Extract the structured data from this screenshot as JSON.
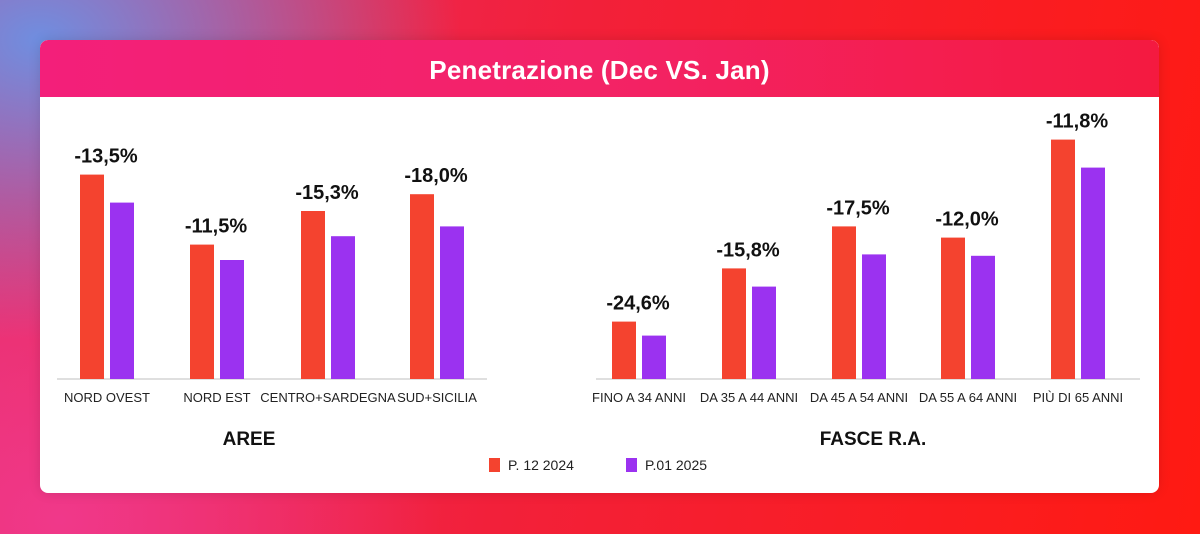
{
  "header": {
    "title": "Penetrazione (Dec VS. Jan)"
  },
  "legend": [
    {
      "name": "P. 12 2024",
      "color": "#f4432f"
    },
    {
      "name": "P.01 2025",
      "color": "#9b32f0"
    }
  ],
  "chart_data": [
    {
      "type": "bar",
      "title": "AREE",
      "categories": [
        "NORD OVEST",
        "NORD EST",
        "CENTRO+SARDEGNA",
        "SUD+SICILIA"
      ],
      "series": [
        {
          "name": "P. 12 2024",
          "values": [
            73,
            48,
            60,
            66
          ]
        },
        {
          "name": "P.01 2025",
          "values": [
            63,
            42.5,
            51,
            54.5
          ]
        }
      ],
      "data_labels": [
        "-13,5%",
        "-11,5%",
        "-15,3%",
        "-18,0%"
      ],
      "ylim": [
        0,
        100
      ]
    },
    {
      "type": "bar",
      "title": "FASCE R.A.",
      "categories": [
        "FINO A 34 ANNI",
        "DA 35 A 44 ANNI",
        "DA 45 A 54 ANNI",
        "DA 55 A 64 ANNI",
        "PIÙ DI 65 ANNI"
      ],
      "series": [
        {
          "name": "P. 12 2024",
          "values": [
            20.5,
            39.5,
            54.5,
            50.5,
            85.5
          ]
        },
        {
          "name": "P.01 2025",
          "values": [
            15.5,
            33,
            44.5,
            44,
            75.5
          ]
        }
      ],
      "data_labels": [
        "-24,6%",
        "-15,8%",
        "-17,5%",
        "-12,0%",
        "-11,8%"
      ],
      "ylim": [
        0,
        100
      ]
    }
  ]
}
